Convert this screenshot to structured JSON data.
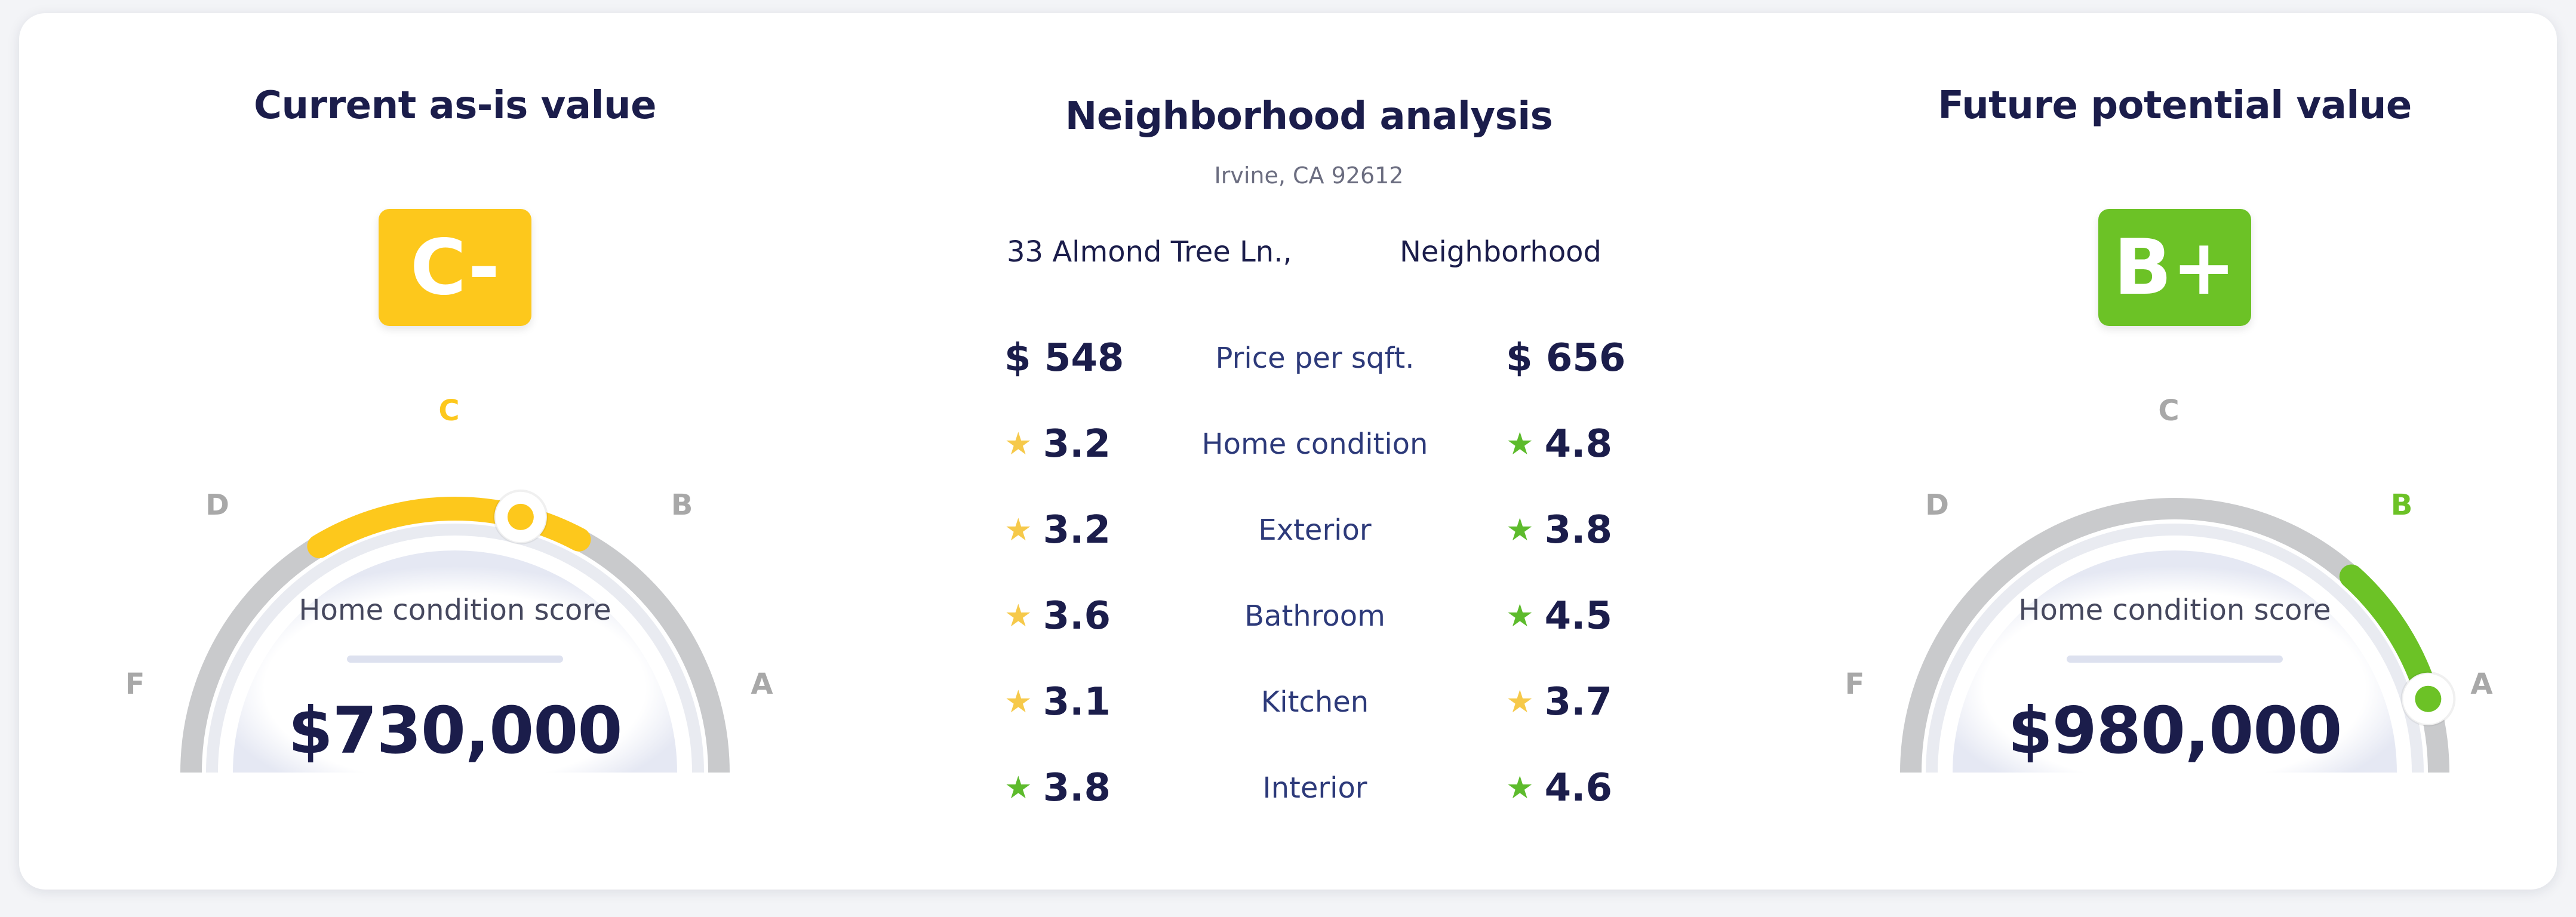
{
  "colors": {
    "navy": "#1b1d4b",
    "yellow": "#fdc81c",
    "green": "#6cc226",
    "gray_text": "#a8a8a8",
    "label_blue": "#2d3a7a"
  },
  "current": {
    "title": "Current as-is value",
    "grade": "C-",
    "grade_color": "#fdc81c",
    "score_label": "Home condition score",
    "value": "$730,000",
    "grade_letters": {
      "F": "F",
      "D": "D",
      "C": "C",
      "B": "B",
      "A": "A"
    },
    "active_letter": "C",
    "marker_level": 0.58
  },
  "future": {
    "title": "Future potential value",
    "grade": "B+",
    "grade_color": "#6cc226",
    "score_label": "Home condition score",
    "value": "$980,000",
    "grade_letters": {
      "F": "F",
      "D": "D",
      "C": "C",
      "B": "B",
      "A": "A"
    },
    "active_letter": "B",
    "marker_level": 0.91
  },
  "neighborhood": {
    "title": "Neighborhood analysis",
    "subtitle": "Irvine, CA 92612",
    "column_left": "33 Almond Tree Ln.,",
    "column_right": "Neighborhood",
    "rows": [
      {
        "label": "Price per sqft.",
        "left": "$ 548",
        "right": "$ 656",
        "left_star": "",
        "right_star": ""
      },
      {
        "label": "Home condition",
        "left": "3.2",
        "right": "4.8",
        "left_star": "yellow",
        "right_star": "green"
      },
      {
        "label": "Exterior",
        "left": "3.2",
        "right": "3.8",
        "left_star": "yellow",
        "right_star": "green"
      },
      {
        "label": "Bathroom",
        "left": "3.6",
        "right": "4.5",
        "left_star": "yellow",
        "right_star": "green"
      },
      {
        "label": "Kitchen",
        "left": "3.1",
        "right": "3.7",
        "left_star": "yellow",
        "right_star": "yellow"
      },
      {
        "label": "Interior",
        "left": "3.8",
        "right": "4.6",
        "left_star": "green",
        "right_star": "green"
      }
    ]
  }
}
